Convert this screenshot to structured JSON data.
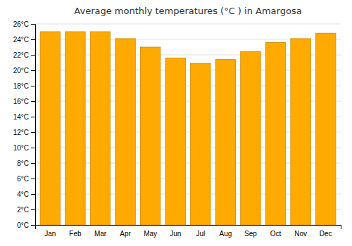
{
  "chart_data": {
    "type": "bar",
    "title": "Average monthly temperatures (°C ) in Amargosa",
    "categories": [
      "Jan",
      "Feb",
      "Mar",
      "Apr",
      "May",
      "Jun",
      "Jul",
      "Aug",
      "Sep",
      "Oct",
      "Nov",
      "Dec"
    ],
    "values": [
      25.0,
      25.0,
      25.0,
      24.1,
      23.0,
      21.6,
      20.9,
      21.4,
      22.4,
      23.6,
      24.1,
      24.8
    ],
    "color": "#FFAA00",
    "ylim": [
      0,
      26
    ],
    "yticks": [
      {
        "value": 0,
        "label": "0°C"
      },
      {
        "value": 2,
        "label": "2°C"
      },
      {
        "value": 4,
        "label": "4°C"
      },
      {
        "value": 6,
        "label": "6°C"
      },
      {
        "value": 8,
        "label": "8°C"
      },
      {
        "value": 10,
        "label": "10°C"
      },
      {
        "value": 12,
        "label": "12°C"
      },
      {
        "value": 14,
        "label": "14°C"
      },
      {
        "value": 16,
        "label": "16°C"
      },
      {
        "value": 18,
        "label": "18°C"
      },
      {
        "value": 20,
        "label": "20°C"
      },
      {
        "value": 22,
        "label": "22°C"
      },
      {
        "value": 24,
        "label": "24°C"
      },
      {
        "value": 26,
        "label": "26°C"
      }
    ],
    "grid": true
  }
}
